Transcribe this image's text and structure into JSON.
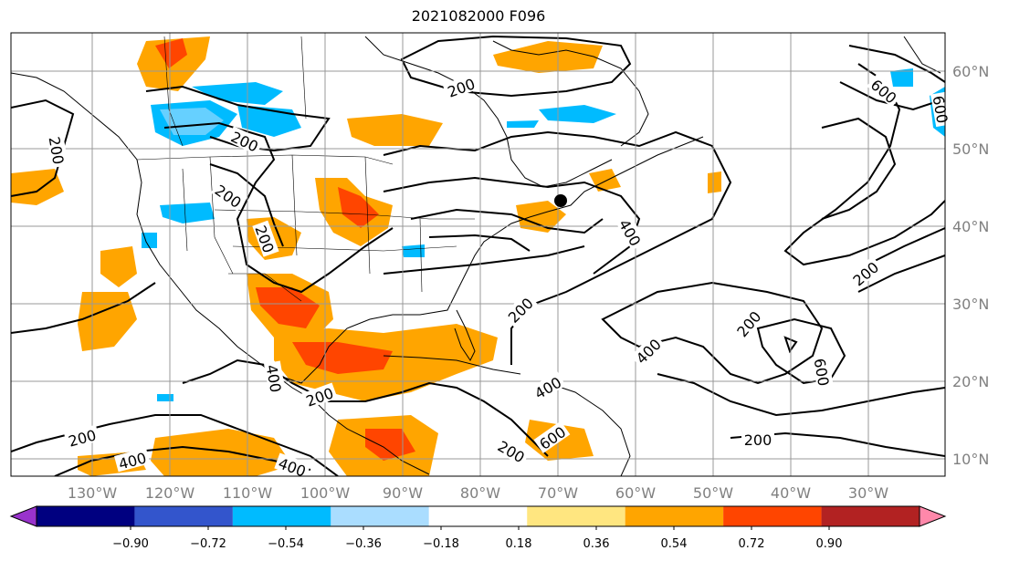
{
  "title": "2021082000 F096",
  "longitude_labels": [
    "130°W",
    "120°W",
    "110°W",
    "100°W",
    "90°W",
    "80°W",
    "70°W",
    "60°W",
    "50°W",
    "40°W",
    "30°W"
  ],
  "latitude_labels": [
    "60°N",
    "50°N",
    "40°N",
    "30°N",
    "20°N",
    "10°N"
  ],
  "colorbar": {
    "tick_labels": [
      "−0.90",
      "−0.72",
      "−0.54",
      "−0.36",
      "−0.18",
      "0.18",
      "0.36",
      "0.54",
      "0.72",
      "0.90"
    ],
    "colors": {
      "under": "#9933cc",
      "bins": [
        "#000080",
        "#3355cc",
        "#00bbff",
        "#aaddff",
        "#ffffff",
        "#ffe680",
        "#ffa500",
        "#ff4500",
        "#b22222"
      ],
      "over": "#ff88aa"
    }
  },
  "contour_labels": [
    "200",
    "200",
    "200",
    "200",
    "200",
    "200",
    "200",
    "200",
    "200",
    "200",
    "200",
    "200",
    "400",
    "400",
    "400",
    "400",
    "400",
    "400",
    "600",
    "600",
    "600",
    "600"
  ],
  "colors": {
    "contour": "#000000",
    "grid": "#999999",
    "label": "#808080"
  }
}
